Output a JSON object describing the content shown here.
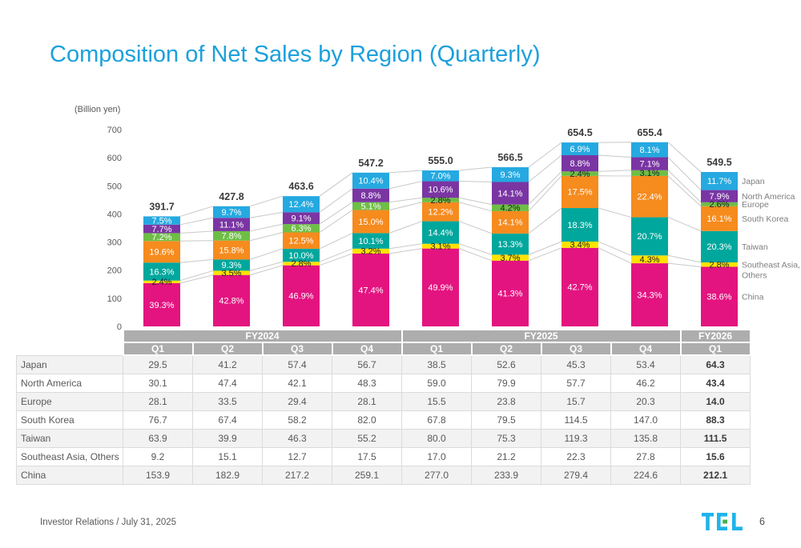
{
  "slide": {
    "title": "Composition of Net Sales by Region (Quarterly)",
    "unit_label": "(Billion yen)",
    "footer_text": "Investor Relations / July 31, 2025",
    "page_number": "6",
    "logo_alt": "TEL"
  },
  "colors": {
    "title": "#1CA0DC",
    "japan": "#25A9E0",
    "north_america": "#7A35A3",
    "europe": "#6EBE45",
    "south_korea": "#F68B1E",
    "taiwan": "#00A79D",
    "southeast_asia_others": "#FFE200",
    "china": "#E31480",
    "connector": "#C8C8C8",
    "header_band": "#ADADAD",
    "logo_cyan": "#1FB4EA",
    "logo_green": "#47B04B"
  },
  "chart_data": {
    "type": "bar",
    "stacked": true,
    "title": "Composition of Net Sales by Region (Quarterly)",
    "unit": "Billion yen",
    "ylim": [
      0,
      700
    ],
    "ytick_step": 100,
    "grid": false,
    "legend_position": "right-of-last-bar",
    "categories": [
      "FY2024 Q1",
      "FY2024 Q2",
      "FY2024 Q3",
      "FY2024 Q4",
      "FY2025 Q1",
      "FY2025 Q2",
      "FY2025 Q3",
      "FY2025 Q4",
      "FY2026 Q1"
    ],
    "totals": [
      391.7,
      427.8,
      463.6,
      547.2,
      555.0,
      566.5,
      654.5,
      655.4,
      549.5
    ],
    "series": [
      {
        "name": "Japan",
        "color_key": "japan",
        "values": [
          29.5,
          41.2,
          57.4,
          56.7,
          38.5,
          52.6,
          45.3,
          53.4,
          64.3
        ],
        "percents": [
          7.5,
          9.7,
          12.4,
          10.4,
          7.0,
          9.3,
          6.9,
          8.1,
          11.7
        ]
      },
      {
        "name": "North America",
        "color_key": "north_america",
        "values": [
          30.1,
          47.4,
          42.1,
          48.3,
          59.0,
          79.9,
          57.7,
          46.2,
          43.4
        ],
        "percents": [
          7.7,
          11.1,
          9.1,
          8.8,
          10.6,
          14.1,
          8.8,
          7.1,
          7.9
        ]
      },
      {
        "name": "Europe",
        "color_key": "europe",
        "values": [
          28.1,
          33.5,
          29.4,
          28.1,
          15.5,
          23.8,
          15.7,
          20.3,
          14.0
        ],
        "percents": [
          7.2,
          7.8,
          6.3,
          5.1,
          2.8,
          4.2,
          2.4,
          3.1,
          2.6
        ]
      },
      {
        "name": "South Korea",
        "color_key": "south_korea",
        "values": [
          76.7,
          67.4,
          58.2,
          82.0,
          67.8,
          79.5,
          114.5,
          147.0,
          88.3
        ],
        "percents": [
          19.6,
          15.8,
          12.5,
          15.0,
          12.2,
          14.1,
          17.5,
          22.4,
          16.1
        ]
      },
      {
        "name": "Taiwan",
        "color_key": "taiwan",
        "values": [
          63.9,
          39.9,
          46.3,
          55.2,
          80.0,
          75.3,
          119.3,
          135.8,
          111.5
        ],
        "percents": [
          16.3,
          9.3,
          10.0,
          10.1,
          14.4,
          13.3,
          18.3,
          20.7,
          20.3
        ]
      },
      {
        "name": "Southeast Asia, Others",
        "color_key": "southeast_asia_others",
        "values": [
          9.2,
          15.1,
          12.7,
          17.5,
          17.0,
          21.2,
          22.3,
          27.8,
          15.6
        ],
        "percents": [
          2.4,
          3.5,
          2.8,
          3.2,
          3.1,
          3.7,
          3.4,
          4.3,
          2.8
        ]
      },
      {
        "name": "China",
        "color_key": "china",
        "values": [
          153.9,
          182.9,
          217.2,
          259.1,
          277.0,
          233.9,
          279.4,
          224.6,
          212.1
        ],
        "percents": [
          39.3,
          42.8,
          46.9,
          47.4,
          49.9,
          41.3,
          42.7,
          34.3,
          38.6
        ]
      }
    ],
    "legend_lines": [
      [
        "Japan"
      ],
      [
        "North America"
      ],
      [
        "Europe"
      ],
      [
        "South Korea"
      ],
      [
        "Taiwan"
      ],
      [
        "Southeast Asia,",
        "Others"
      ],
      [
        "China"
      ]
    ]
  },
  "table": {
    "fiscal_groups": [
      {
        "label": "FY2024",
        "span": 4
      },
      {
        "label": "FY2025",
        "span": 4
      },
      {
        "label": "FY2026",
        "span": 1
      }
    ],
    "quarter_headers": [
      "Q1",
      "Q2",
      "Q3",
      "Q4",
      "Q1",
      "Q2",
      "Q3",
      "Q4",
      "Q1"
    ],
    "row_labels": [
      "Japan",
      "North America",
      "Europe",
      "South Korea",
      "Taiwan",
      "Southeast Asia, Others",
      "China"
    ],
    "highlight_last_column_bold": true
  }
}
